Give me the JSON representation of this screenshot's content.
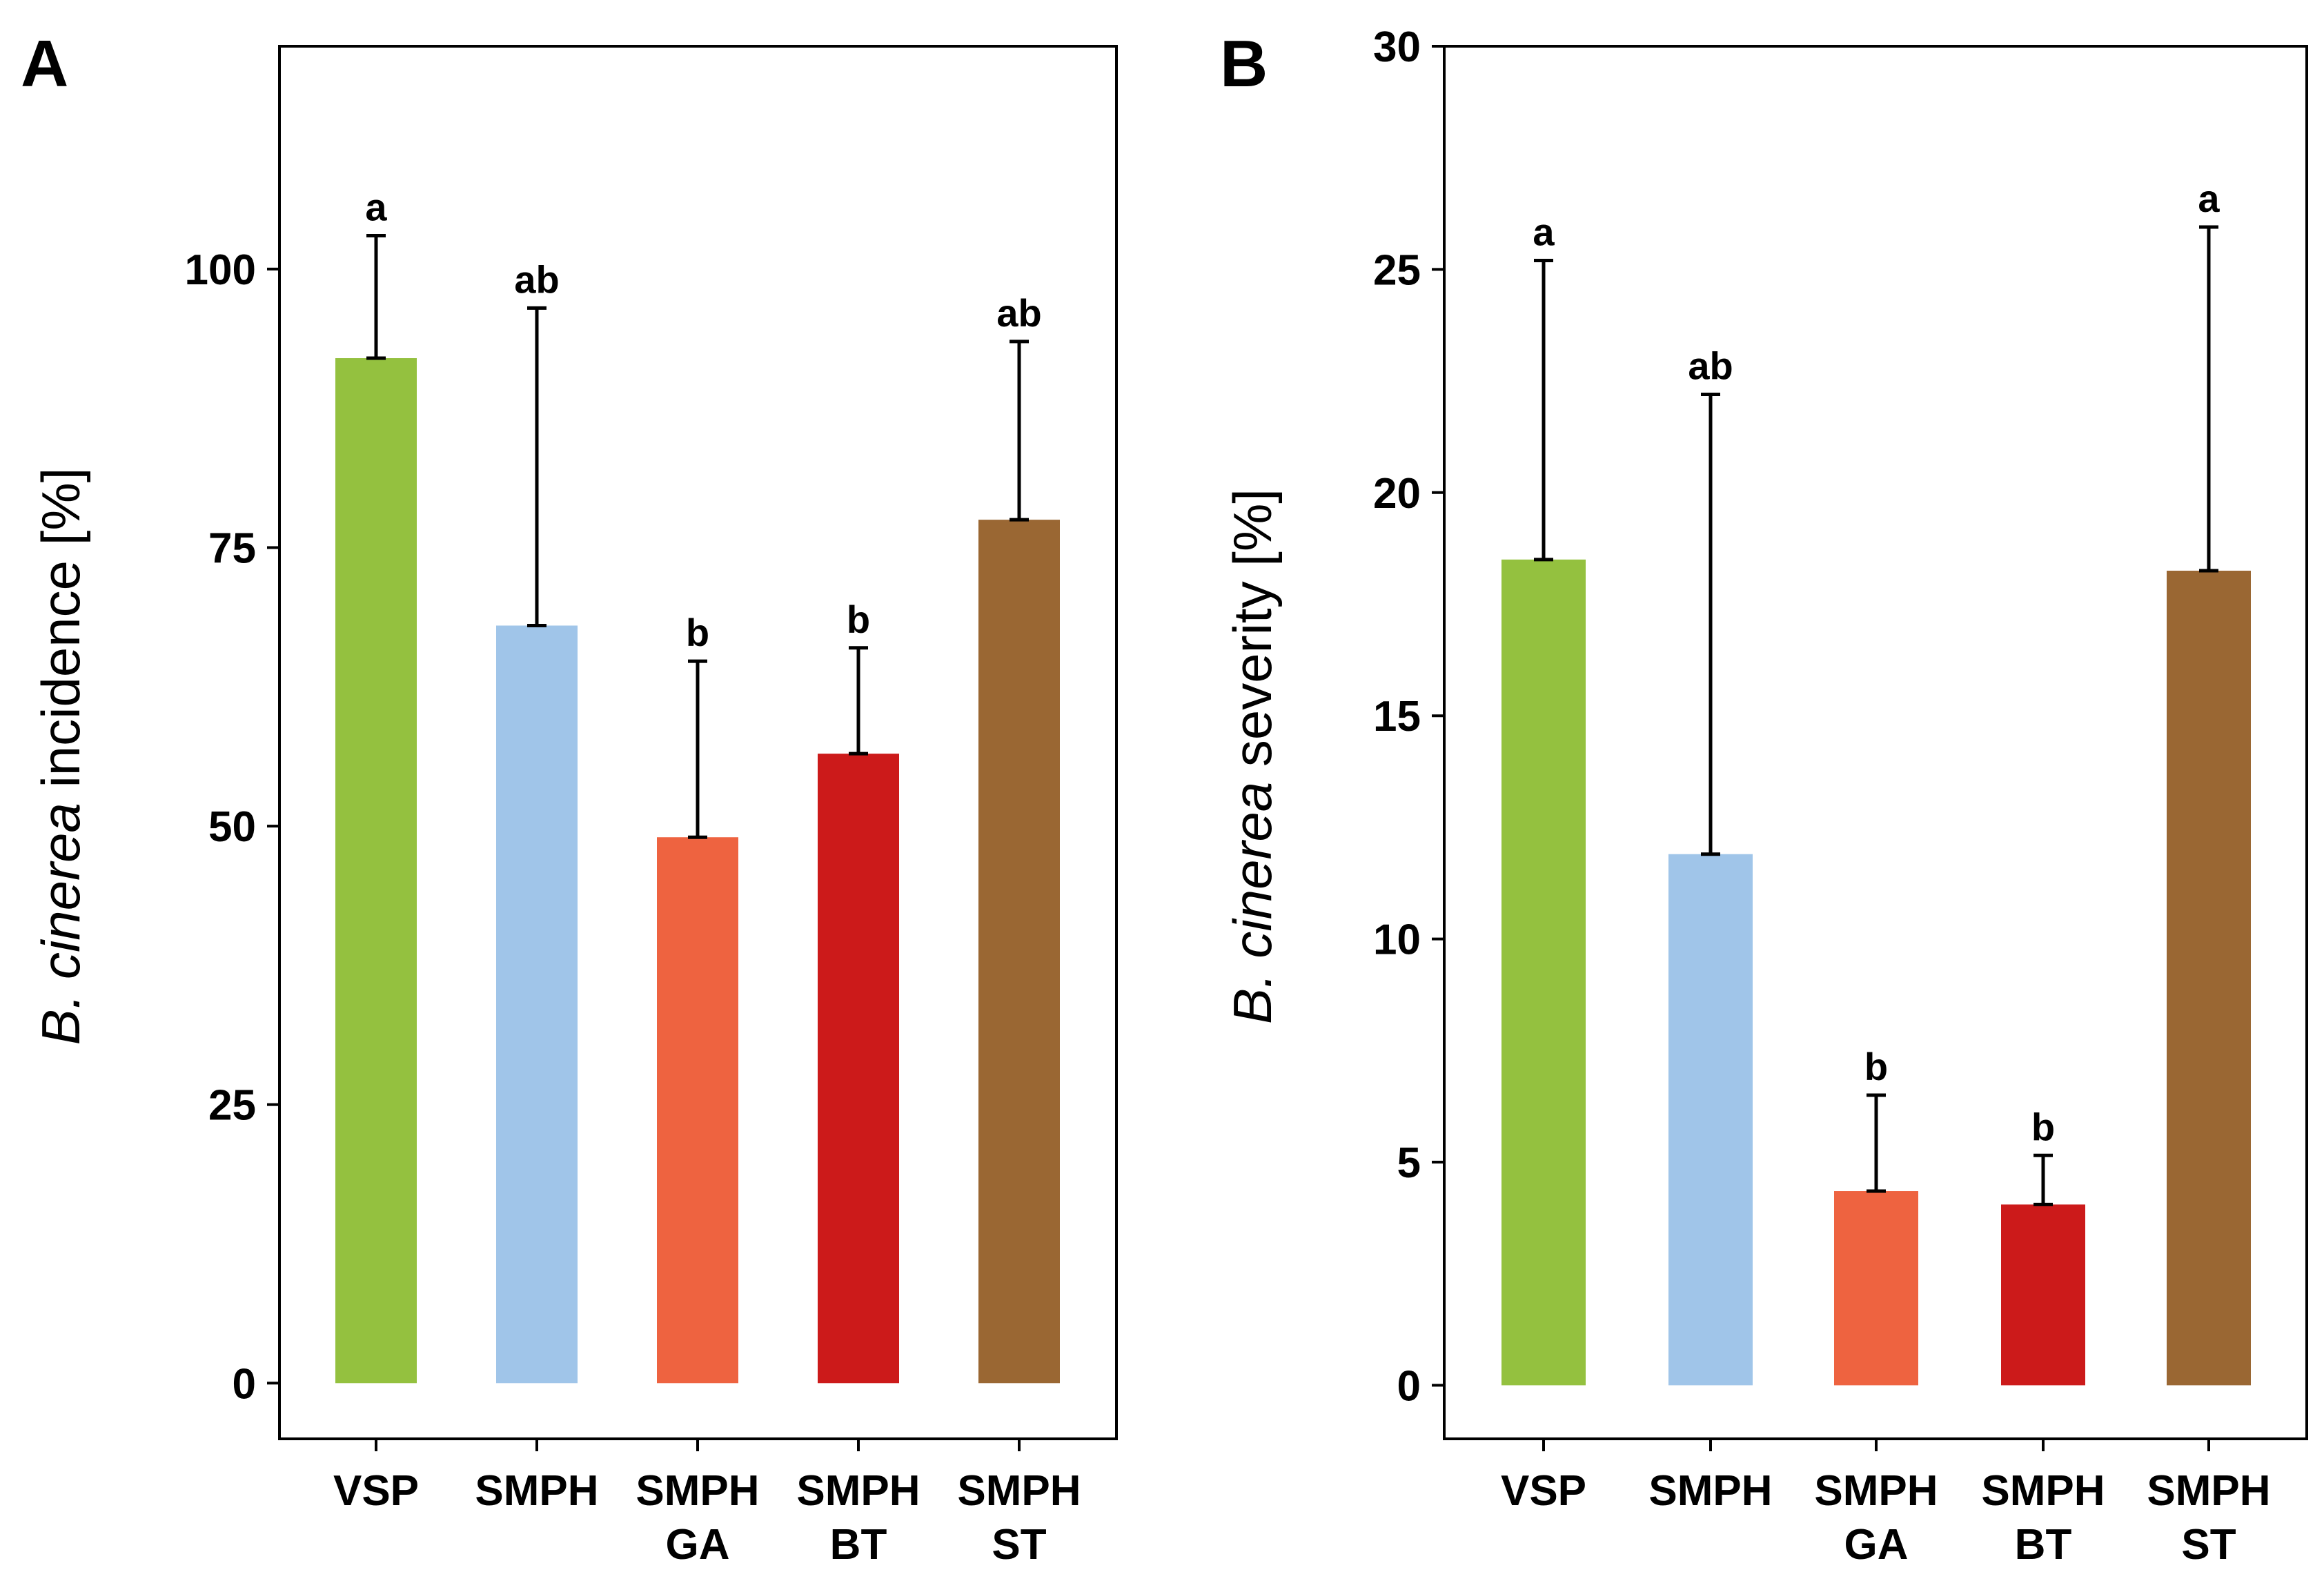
{
  "chart_data": [
    {
      "panel": "A",
      "type": "bar",
      "ylabel_italic": "B. cinerea",
      "ylabel_rest": " incidence [%]",
      "ylim": [
        -5,
        120
      ],
      "yticks": [
        0,
        25,
        50,
        75,
        100
      ],
      "ytick_labels": [
        "0",
        "25",
        "50",
        "75",
        "100"
      ],
      "categories": [
        [
          "VSP"
        ],
        [
          "SMPH"
        ],
        [
          "SMPH",
          "GA"
        ],
        [
          "SMPH",
          "BT"
        ],
        [
          "SMPH",
          "ST"
        ]
      ],
      "values": [
        92,
        68,
        49,
        56.5,
        77.5
      ],
      "error_upper": [
        103,
        96.5,
        64.8,
        66,
        93.5
      ],
      "significance": [
        "a",
        "ab",
        "b",
        "b",
        "ab"
      ],
      "colors": [
        "#94c13f",
        "#a0c5e9",
        "#ee6340",
        "#cc1a1a",
        "#9a6733"
      ]
    },
    {
      "panel": "B",
      "type": "bar",
      "ylabel_italic": "B. cinerea",
      "ylabel_rest": " severity [%]",
      "ylim": [
        -1.2,
        30
      ],
      "yticks": [
        0,
        5,
        10,
        15,
        20,
        25,
        30
      ],
      "ytick_labels": [
        "0",
        "5",
        "10",
        "15",
        "20",
        "25",
        "30"
      ],
      "categories": [
        [
          "VSP"
        ],
        [
          "SMPH"
        ],
        [
          "SMPH",
          "GA"
        ],
        [
          "SMPH",
          "BT"
        ],
        [
          "SMPH",
          "ST"
        ]
      ],
      "values": [
        18.5,
        11.9,
        4.35,
        4.05,
        18.25
      ],
      "error_upper": [
        25.2,
        22.2,
        6.5,
        5.15,
        25.95
      ],
      "significance": [
        "a",
        "ab",
        "b",
        "b",
        "a"
      ],
      "colors": [
        "#94c13f",
        "#a0c5e9",
        "#ee6340",
        "#cc1a1a",
        "#9a6733"
      ]
    }
  ]
}
